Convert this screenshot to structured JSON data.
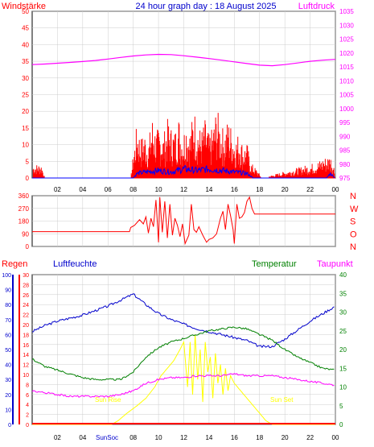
{
  "header": {
    "left_label": "Windstärke",
    "title": "24 hour graph day : 18 August 2025",
    "right_label": "Luftdruck"
  },
  "colors": {
    "red": "#ff0000",
    "blue": "#0000cc",
    "magenta": "#ff00ff",
    "green": "#008000",
    "yellow": "#ffff00",
    "gust": "#ff0000",
    "avg": "#0000ff",
    "avg2": "#00aa00",
    "grid": "#cccccc"
  },
  "time_ticks": [
    "02",
    "04",
    "06",
    "08",
    "10",
    "12",
    "14",
    "16",
    "18",
    "20",
    "22",
    "00"
  ],
  "wind_panel": {
    "left_ticks": [
      "50",
      "45",
      "40",
      "35",
      "30",
      "25",
      "20",
      "15",
      "10",
      "5",
      "0"
    ],
    "right_ticks": [
      "1035",
      "1030",
      "1025",
      "1020",
      "1015",
      "1010",
      "1005",
      "1000",
      "995",
      "990",
      "985",
      "980",
      "975"
    ]
  },
  "direction_panel": {
    "left_ticks": [
      "360",
      "270",
      "180",
      "90",
      "0"
    ],
    "right_letters": [
      "N",
      "W",
      "S",
      "O",
      "N"
    ]
  },
  "bottom_panel": {
    "labels": {
      "regen": "Regen",
      "luftfeuchte": "Luftfeuchte",
      "temperatur": "Temperatur",
      "taupunkt": "Taupunkt",
      "sun_rise": "Sun Rise",
      "sun_set": "Sun Set",
      "sun_axis": "SunSoc"
    },
    "humidity_ticks": [
      "100",
      "90",
      "80",
      "70",
      "60",
      "50",
      "40",
      "30",
      "20",
      "10",
      "0"
    ],
    "rain_ticks": [
      "30",
      "28",
      "26",
      "24",
      "22",
      "20",
      "18",
      "16",
      "14",
      "12",
      "10",
      "8",
      "6",
      "4",
      "2",
      "0"
    ],
    "temp_ticks": [
      "40",
      "35",
      "30",
      "25",
      "20",
      "15",
      "10",
      "5",
      "0"
    ]
  },
  "chart_data": [
    {
      "type": "line",
      "title": "24 hour graph day : 18 August 2025",
      "ylabel": "Windstärke",
      "ylabel_right": "Luftdruck",
      "ylim": [
        0,
        50
      ],
      "ylim_right": [
        975,
        1035
      ],
      "x_hours": [
        0,
        1,
        2,
        3,
        4,
        5,
        6,
        7,
        8,
        9,
        10,
        11,
        12,
        13,
        14,
        15,
        16,
        17,
        18,
        19,
        20,
        21,
        22,
        23,
        24
      ],
      "series": [
        {
          "name": "Luftdruck",
          "axis": "right",
          "values": [
            1015.8,
            1016.0,
            1016.3,
            1016.6,
            1016.9,
            1017.3,
            1017.8,
            1018.4,
            1018.9,
            1019.3,
            1019.5,
            1019.4,
            1019.0,
            1018.5,
            1018.0,
            1017.4,
            1016.8,
            1016.2,
            1015.6,
            1015.4,
            1015.8,
            1016.4,
            1017.0,
            1017.4,
            1017.7
          ]
        }
      ],
      "gust_profile": [
        [
          0.05,
          3.5
        ],
        [
          0.75,
          3.5
        ],
        [
          1.0,
          0
        ],
        [
          7.8,
          0
        ],
        [
          8.0,
          6
        ],
        [
          8.3,
          14
        ],
        [
          8.6,
          10
        ],
        [
          8.9,
          12
        ],
        [
          9.2,
          9
        ],
        [
          9.5,
          16
        ],
        [
          9.8,
          12
        ],
        [
          10.1,
          13
        ],
        [
          10.4,
          11
        ],
        [
          10.7,
          15
        ],
        [
          11.0,
          13
        ],
        [
          11.3,
          12
        ],
        [
          11.6,
          16
        ],
        [
          11.9,
          11
        ],
        [
          12.2,
          15
        ],
        [
          12.5,
          12
        ],
        [
          12.8,
          18
        ],
        [
          13.1,
          14
        ],
        [
          13.4,
          12
        ],
        [
          13.7,
          15
        ],
        [
          14.0,
          11
        ],
        [
          14.3,
          13
        ],
        [
          14.6,
          18
        ],
        [
          14.9,
          14
        ],
        [
          15.2,
          12
        ],
        [
          15.5,
          15
        ],
        [
          15.8,
          13
        ],
        [
          16.1,
          10
        ],
        [
          16.4,
          12
        ],
        [
          16.7,
          8
        ],
        [
          17.0,
          9
        ],
        [
          17.3,
          4
        ],
        [
          17.8,
          2
        ],
        [
          18.2,
          0
        ],
        [
          22.5,
          4
        ],
        [
          23.0,
          5
        ],
        [
          23.6,
          6
        ],
        [
          23.9,
          3
        ],
        [
          24.0,
          0
        ]
      ],
      "avg_profile": [
        [
          0,
          0
        ],
        [
          8.0,
          0
        ],
        [
          8.3,
          1.5
        ],
        [
          9.0,
          2
        ],
        [
          10.0,
          2.5
        ],
        [
          11.0,
          2
        ],
        [
          12.0,
          3
        ],
        [
          13.0,
          2.5
        ],
        [
          14.0,
          3
        ],
        [
          15.0,
          2.5
        ],
        [
          16.0,
          2
        ],
        [
          17.0,
          1.5
        ],
        [
          17.5,
          0
        ],
        [
          23.3,
          0
        ],
        [
          23.6,
          1.5
        ],
        [
          24.0,
          0
        ]
      ]
    },
    {
      "type": "line",
      "title": "",
      "ylabel": "",
      "ylim": [
        0,
        360
      ],
      "series": [
        {
          "name": "",
          "points": [
            [
              0,
              105
            ],
            [
              7.7,
              105
            ],
            [
              7.8,
              135
            ],
            [
              8.1,
              150
            ],
            [
              8.5,
              190
            ],
            [
              8.8,
              160
            ],
            [
              9.0,
              210
            ],
            [
              9.2,
              95
            ],
            [
              9.4,
              200
            ],
            [
              9.6,
              140
            ],
            [
              9.8,
              330
            ],
            [
              10.0,
              30
            ],
            [
              10.1,
              350
            ],
            [
              10.3,
              100
            ],
            [
              10.5,
              320
            ],
            [
              10.7,
              60
            ],
            [
              10.9,
              300
            ],
            [
              11.1,
              80
            ],
            [
              11.3,
              200
            ],
            [
              11.5,
              150
            ],
            [
              11.7,
              70
            ],
            [
              11.9,
              160
            ],
            [
              12.1,
              20
            ],
            [
              12.4,
              80
            ],
            [
              12.6,
              300
            ],
            [
              12.8,
              120
            ],
            [
              13.0,
              100
            ],
            [
              13.2,
              140
            ],
            [
              13.5,
              80
            ],
            [
              13.8,
              30
            ],
            [
              14.0,
              50
            ],
            [
              14.3,
              60
            ],
            [
              14.6,
              90
            ],
            [
              14.9,
              200
            ],
            [
              15.1,
              250
            ],
            [
              15.3,
              120
            ],
            [
              15.5,
              300
            ],
            [
              15.7,
              220
            ],
            [
              15.9,
              120
            ],
            [
              16.0,
              20
            ],
            [
              16.2,
              300
            ],
            [
              16.4,
              200
            ],
            [
              16.6,
              210
            ],
            [
              16.8,
              240
            ],
            [
              17.0,
              320
            ],
            [
              17.2,
              350
            ],
            [
              17.4,
              270
            ],
            [
              17.6,
              230
            ],
            [
              24,
              230
            ]
          ]
        }
      ]
    },
    {
      "type": "line",
      "title": "",
      "ylabel": "Luftfeuchte",
      "ylabel_right": "Temperatur",
      "ylim_humidity": [
        0,
        100
      ],
      "ylim_temperature": [
        0,
        40
      ],
      "ylim_rain": [
        0,
        30
      ],
      "x_hours": [
        0,
        1,
        2,
        3,
        4,
        5,
        6,
        7,
        8,
        9,
        10,
        11,
        12,
        13,
        14,
        15,
        16,
        17,
        18,
        19,
        20,
        21,
        22,
        23,
        24
      ],
      "series": [
        {
          "name": "Luftfeuchte",
          "axis": "humidity",
          "values": [
            62,
            66,
            69,
            71,
            73,
            76,
            79,
            83,
            87,
            80,
            74,
            70,
            67,
            64,
            62,
            60,
            58,
            56,
            52,
            52,
            57,
            63,
            69,
            74,
            79
          ]
        },
        {
          "name": "Temperatur",
          "axis": "temperature",
          "values": [
            17.5,
            15.5,
            14.5,
            13.5,
            12.5,
            12,
            12,
            12,
            14,
            18,
            20.5,
            22,
            23,
            24,
            25,
            25.5,
            26,
            25.5,
            24,
            22.5,
            20,
            18,
            16.5,
            15,
            14.5
          ]
        },
        {
          "name": "Taupunkt",
          "axis": "temperature",
          "values": [
            9,
            8.5,
            8,
            7.5,
            7.5,
            7.5,
            7.5,
            8,
            9,
            11,
            12,
            12.5,
            12.5,
            13,
            13,
            13,
            13.5,
            13,
            13,
            13,
            12.5,
            12,
            11.5,
            11,
            10.5
          ]
        }
      ],
      "solar_profile": [
        [
          0,
          0
        ],
        [
          6.3,
          0
        ],
        [
          6.8,
          1
        ],
        [
          7.5,
          3
        ],
        [
          8.3,
          5
        ],
        [
          9.0,
          7
        ],
        [
          9.7,
          10
        ],
        [
          10.2,
          13
        ],
        [
          10.7,
          15
        ],
        [
          11.2,
          17
        ],
        [
          11.7,
          20
        ],
        [
          12.0,
          22
        ],
        [
          12.3,
          10
        ],
        [
          12.5,
          22
        ],
        [
          12.7,
          8
        ],
        [
          12.9,
          24
        ],
        [
          13.1,
          12
        ],
        [
          13.3,
          20
        ],
        [
          13.5,
          6
        ],
        [
          13.7,
          22
        ],
        [
          13.9,
          14
        ],
        [
          14.1,
          18
        ],
        [
          14.3,
          7
        ],
        [
          14.5,
          19
        ],
        [
          14.7,
          11
        ],
        [
          14.9,
          16
        ],
        [
          15.1,
          8
        ],
        [
          15.3,
          15
        ],
        [
          15.5,
          9
        ],
        [
          15.7,
          13
        ],
        [
          16.0,
          11
        ],
        [
          16.5,
          9
        ],
        [
          17.0,
          7
        ],
        [
          17.5,
          5
        ],
        [
          18.0,
          3
        ],
        [
          18.5,
          1
        ],
        [
          19.0,
          0
        ],
        [
          24,
          0
        ]
      ],
      "rain_total": 0,
      "sunrise_hour": 6.2,
      "sunset_hour": 20.3
    }
  ]
}
